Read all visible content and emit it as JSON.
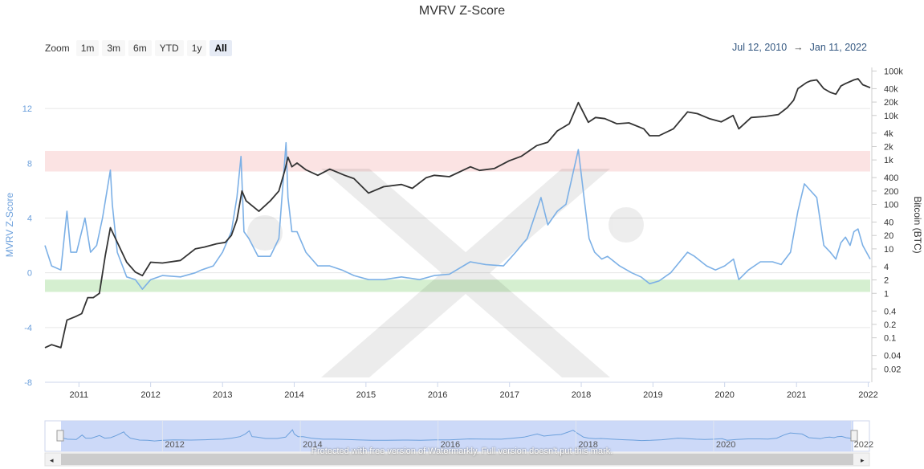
{
  "chart_data": {
    "type": "line",
    "title": "MVRV Z-Score",
    "x_range": [
      "2010-07-12",
      "2022-01-11"
    ],
    "x_tick_labels": [
      "2011",
      "2012",
      "2013",
      "2014",
      "2015",
      "2016",
      "2017",
      "2018",
      "2019",
      "2020",
      "2021",
      "2022"
    ],
    "left_axis": {
      "label": "MVRV Z-Score",
      "ylim": [
        -8,
        15
      ],
      "ticks": [
        -8,
        -4,
        0,
        4,
        8,
        12
      ]
    },
    "right_axis": {
      "label": "Bitcoin (BTC)",
      "scale": "log",
      "ylim": [
        0.01,
        120000
      ],
      "tick_labels": [
        "0.02",
        "0.04",
        "0.1",
        "0.2",
        "0.4",
        "1",
        "2",
        "4",
        "10",
        "20",
        "40",
        "100",
        "200",
        "400",
        "1k",
        "2k",
        "4k",
        "10k",
        "20k",
        "40k",
        "100k"
      ],
      "tick_values": [
        0.02,
        0.04,
        0.1,
        0.2,
        0.4,
        1,
        2,
        4,
        10,
        20,
        40,
        100,
        200,
        400,
        1000,
        2000,
        4000,
        10000,
        20000,
        40000,
        100000
      ]
    },
    "zones": [
      {
        "name": "overvalued",
        "y_from": 7.4,
        "y_to": 8.9,
        "color": "#fbe3e3"
      },
      {
        "name": "undervalued",
        "y_from": -1.4,
        "y_to": -0.5,
        "color": "#d5efd0"
      }
    ],
    "grid": true,
    "series": [
      {
        "axis": "left",
        "color": "#7cb0e6",
        "x": [
          "2010-07-12",
          "2010-08-15",
          "2010-10-01",
          "2010-11-01",
          "2010-11-20",
          "2010-12-20",
          "2011-02-01",
          "2011-03-01",
          "2011-04-01",
          "2011-05-01",
          "2011-06-10",
          "2011-06-20",
          "2011-07-15",
          "2011-09-01",
          "2011-10-15",
          "2011-11-20",
          "2012-01-01",
          "2012-03-01",
          "2012-06-01",
          "2012-08-15",
          "2012-09-15",
          "2012-11-15",
          "2013-01-01",
          "2013-02-15",
          "2013-03-15",
          "2013-04-05",
          "2013-04-20",
          "2013-05-15",
          "2013-07-01",
          "2013-09-01",
          "2013-10-15",
          "2013-11-20",
          "2013-11-30",
          "2013-12-20",
          "2014-01-15",
          "2014-03-01",
          "2014-05-01",
          "2014-07-01",
          "2014-09-01",
          "2014-11-01",
          "2015-01-15",
          "2015-04-01",
          "2015-07-01",
          "2015-10-01",
          "2015-12-15",
          "2016-03-01",
          "2016-06-15",
          "2016-09-01",
          "2016-12-01",
          "2017-02-01",
          "2017-04-01",
          "2017-06-10",
          "2017-07-15",
          "2017-09-01",
          "2017-10-15",
          "2017-12-17",
          "2018-01-15",
          "2018-02-10",
          "2018-03-10",
          "2018-04-15",
          "2018-05-15",
          "2018-07-15",
          "2018-09-15",
          "2018-11-01",
          "2018-12-15",
          "2019-02-01",
          "2019-04-01",
          "2019-06-26",
          "2019-08-01",
          "2019-10-01",
          "2019-11-15",
          "2020-01-01",
          "2020-02-15",
          "2020-03-13",
          "2020-05-01",
          "2020-07-01",
          "2020-09-01",
          "2020-10-15",
          "2020-12-01",
          "2021-01-08",
          "2021-02-10",
          "2021-03-13",
          "2021-04-14",
          "2021-05-20",
          "2021-06-22",
          "2021-07-20",
          "2021-08-15",
          "2021-09-07",
          "2021-10-01",
          "2021-10-20",
          "2021-11-10",
          "2021-12-04",
          "2022-01-11"
        ],
        "y": [
          2.0,
          0.5,
          0.2,
          4.5,
          1.5,
          1.5,
          4.0,
          1.5,
          2.0,
          4.0,
          7.5,
          5.0,
          1.5,
          -0.3,
          -0.5,
          -1.2,
          -0.5,
          -0.2,
          -0.3,
          0.0,
          0.2,
          0.5,
          1.5,
          3.0,
          5.5,
          8.5,
          3.0,
          2.5,
          1.2,
          1.2,
          2.5,
          9.5,
          5.5,
          3.0,
          3.0,
          1.5,
          0.5,
          0.5,
          0.2,
          -0.2,
          -0.5,
          -0.5,
          -0.3,
          -0.5,
          -0.2,
          -0.1,
          0.8,
          0.6,
          0.5,
          1.5,
          2.5,
          5.5,
          3.5,
          4.5,
          5.0,
          9.0,
          5.5,
          2.5,
          1.5,
          1.0,
          1.2,
          0.5,
          0.0,
          -0.3,
          -0.8,
          -0.6,
          0.0,
          1.5,
          1.2,
          0.5,
          0.2,
          0.5,
          1.0,
          -0.5,
          0.2,
          0.8,
          0.8,
          0.6,
          1.5,
          4.5,
          6.5,
          6.0,
          5.5,
          2.0,
          1.5,
          1.0,
          2.2,
          2.6,
          2.0,
          3.0,
          3.2,
          2.0,
          1.0
        ]
      },
      {
        "axis": "right",
        "color": "#333333",
        "x": [
          "2010-07-12",
          "2010-08-15",
          "2010-10-01",
          "2010-11-01",
          "2010-12-15",
          "2011-01-15",
          "2011-02-15",
          "2011-03-15",
          "2011-04-15",
          "2011-05-15",
          "2011-06-10",
          "2011-07-15",
          "2011-09-01",
          "2011-10-15",
          "2011-11-20",
          "2012-01-01",
          "2012-03-01",
          "2012-06-01",
          "2012-08-15",
          "2012-10-01",
          "2012-12-01",
          "2013-01-15",
          "2013-02-15",
          "2013-03-15",
          "2013-04-10",
          "2013-05-01",
          "2013-07-05",
          "2013-09-01",
          "2013-10-15",
          "2013-11-15",
          "2013-11-30",
          "2013-12-20",
          "2014-01-15",
          "2014-03-01",
          "2014-05-01",
          "2014-07-01",
          "2014-09-15",
          "2014-11-01",
          "2015-01-14",
          "2015-04-01",
          "2015-07-01",
          "2015-08-25",
          "2015-11-04",
          "2015-12-15",
          "2016-03-01",
          "2016-06-16",
          "2016-08-01",
          "2016-10-15",
          "2016-12-31",
          "2017-03-01",
          "2017-05-20",
          "2017-07-15",
          "2017-09-01",
          "2017-11-01",
          "2017-12-17",
          "2018-02-06",
          "2018-03-15",
          "2018-05-01",
          "2018-07-01",
          "2018-09-01",
          "2018-11-15",
          "2018-12-15",
          "2019-02-01",
          "2019-04-15",
          "2019-06-26",
          "2019-08-15",
          "2019-10-15",
          "2019-12-15",
          "2020-02-13",
          "2020-03-13",
          "2020-05-15",
          "2020-07-25",
          "2020-10-01",
          "2020-11-15",
          "2020-12-17",
          "2021-01-08",
          "2021-02-21",
          "2021-03-13",
          "2021-04-14",
          "2021-05-20",
          "2021-06-22",
          "2021-07-20",
          "2021-08-15",
          "2021-09-07",
          "2021-10-20",
          "2021-11-10",
          "2021-12-04",
          "2022-01-11"
        ],
        "y": [
          0.06,
          0.07,
          0.06,
          0.25,
          0.3,
          0.35,
          0.8,
          0.8,
          1.0,
          7,
          30,
          14,
          5,
          3,
          2.5,
          5,
          4.8,
          5.5,
          10,
          11,
          13,
          14,
          20,
          45,
          200,
          120,
          70,
          120,
          200,
          600,
          1150,
          700,
          850,
          600,
          450,
          620,
          450,
          380,
          180,
          250,
          280,
          230,
          400,
          450,
          420,
          700,
          580,
          640,
          960,
          1200,
          2100,
          2500,
          4500,
          6500,
          19500,
          7000,
          9000,
          8500,
          6500,
          6800,
          5000,
          3500,
          3500,
          5000,
          12000,
          11000,
          8500,
          7200,
          10000,
          5000,
          9000,
          9500,
          10500,
          15000,
          22000,
          40000,
          55000,
          60000,
          63000,
          40000,
          33000,
          30000,
          46000,
          52000,
          63000,
          67000,
          49000,
          42000
        ]
      }
    ],
    "navigator": {
      "tick_labels": [
        "2012",
        "2014",
        "2016",
        "2018",
        "2020",
        "2022"
      ]
    }
  },
  "zoom": {
    "label": "Zoom",
    "buttons": [
      "1m",
      "3m",
      "6m",
      "YTD",
      "1y",
      "All"
    ],
    "active": "All"
  },
  "range": {
    "from": "Jul 12, 2010",
    "arrow": "→",
    "to": "Jan 11, 2022"
  },
  "watermark_text": "Protected with free version of Watermarkly. Full version doesn't put this mark."
}
